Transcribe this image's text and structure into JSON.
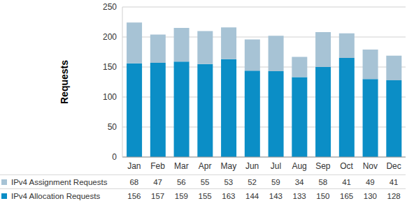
{
  "chart_data": {
    "type": "bar",
    "stacked": true,
    "y_label": "Requests",
    "categories": [
      "Jan",
      "Feb",
      "Mar",
      "Apr",
      "May",
      "Jun",
      "Jul",
      "Aug",
      "Sep",
      "Oct",
      "Nov",
      "Dec"
    ],
    "series": [
      {
        "name": "IPv4 Assignment Requests",
        "color": "#a7c3d5",
        "values": [
          68,
          47,
          56,
          55,
          53,
          52,
          59,
          34,
          58,
          41,
          49,
          41
        ]
      },
      {
        "name": "IPv4 Allocation Requests",
        "color": "#0b8ec6",
        "values": [
          156,
          157,
          159,
          155,
          163,
          144,
          143,
          133,
          150,
          165,
          130,
          128
        ]
      }
    ],
    "ylim": [
      0,
      250
    ],
    "yticks": [
      0,
      50,
      100,
      150,
      200,
      250
    ],
    "grid": true
  }
}
